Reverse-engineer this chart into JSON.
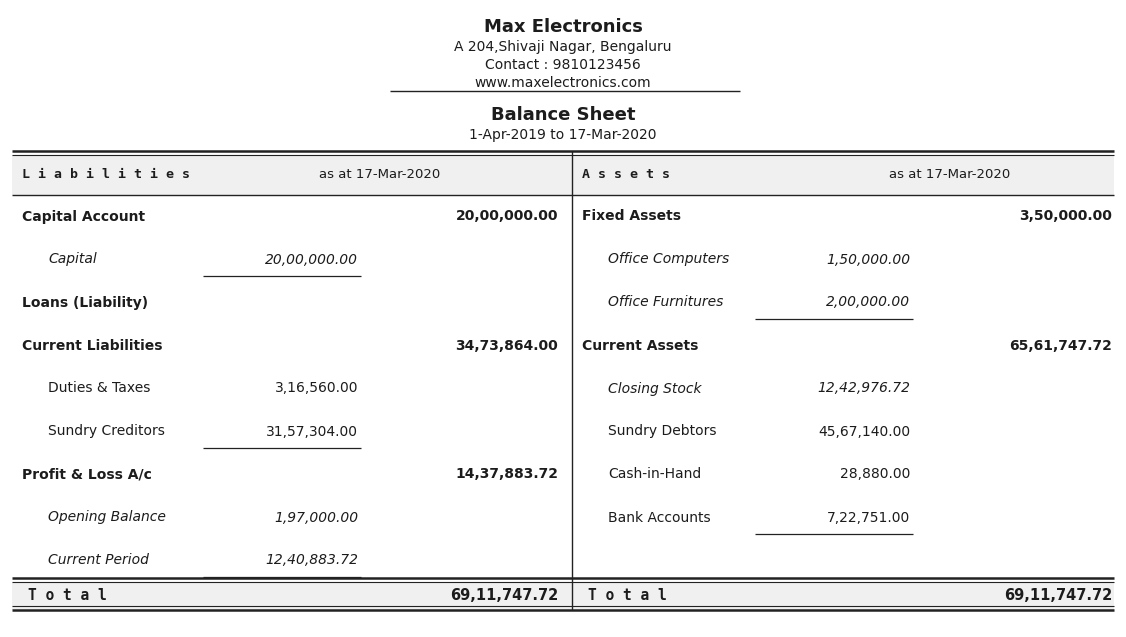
{
  "company_name": "Max Electronics",
  "address": "A 204,Shivaji Nagar, Bengaluru",
  "contact": "Contact : 9810123456",
  "website": "www.maxelectronics.com",
  "report_title": "Balance Sheet",
  "period": "1-Apr-2019 to 17-Mar-2020",
  "header_date": "as at 17-Mar-2020",
  "liabilities_header": "L i a b i l i t i e s",
  "assets_header": "A s s e t s",
  "liabilities": [
    {
      "label": "Capital Account",
      "sub_amount": "",
      "total_amount": "20,00,000.00",
      "bold": true,
      "italic": false,
      "indent": 0,
      "underline_sub": false
    },
    {
      "label": "Capital",
      "sub_amount": "20,00,000.00",
      "total_amount": "",
      "bold": false,
      "italic": true,
      "indent": 1,
      "underline_sub": true
    },
    {
      "label": "Loans (Liability)",
      "sub_amount": "",
      "total_amount": "",
      "bold": true,
      "italic": false,
      "indent": 0,
      "underline_sub": false
    },
    {
      "label": "Current Liabilities",
      "sub_amount": "",
      "total_amount": "34,73,864.00",
      "bold": true,
      "italic": false,
      "indent": 0,
      "underline_sub": false
    },
    {
      "label": "Duties & Taxes",
      "sub_amount": "3,16,560.00",
      "total_amount": "",
      "bold": false,
      "italic": false,
      "indent": 1,
      "underline_sub": false
    },
    {
      "label": "Sundry Creditors",
      "sub_amount": "31,57,304.00",
      "total_amount": "",
      "bold": false,
      "italic": false,
      "indent": 1,
      "underline_sub": true
    },
    {
      "label": "Profit & Loss A/c",
      "sub_amount": "",
      "total_amount": "14,37,883.72",
      "bold": true,
      "italic": false,
      "indent": 0,
      "underline_sub": false
    },
    {
      "label": "Opening Balance",
      "sub_amount": "1,97,000.00",
      "total_amount": "",
      "bold": false,
      "italic": true,
      "indent": 1,
      "underline_sub": false
    },
    {
      "label": "Current Period",
      "sub_amount": "12,40,883.72",
      "total_amount": "",
      "bold": false,
      "italic": true,
      "indent": 1,
      "underline_sub": true
    }
  ],
  "assets": [
    {
      "label": "Fixed Assets",
      "sub_amount": "",
      "total_amount": "3,50,000.00",
      "bold": true,
      "italic": false,
      "indent": 0,
      "underline_sub": false
    },
    {
      "label": "Office Computers",
      "sub_amount": "1,50,000.00",
      "total_amount": "",
      "bold": false,
      "italic": true,
      "indent": 1,
      "underline_sub": false
    },
    {
      "label": "Office Furnitures",
      "sub_amount": "2,00,000.00",
      "total_amount": "",
      "bold": false,
      "italic": true,
      "indent": 1,
      "underline_sub": true
    },
    {
      "label": "Current Assets",
      "sub_amount": "",
      "total_amount": "65,61,747.72",
      "bold": true,
      "italic": false,
      "indent": 0,
      "underline_sub": false
    },
    {
      "label": "Closing Stock",
      "sub_amount": "12,42,976.72",
      "total_amount": "",
      "bold": false,
      "italic": true,
      "indent": 1,
      "underline_sub": false
    },
    {
      "label": "Sundry Debtors",
      "sub_amount": "45,67,140.00",
      "total_amount": "",
      "bold": false,
      "italic": false,
      "indent": 1,
      "underline_sub": false
    },
    {
      "label": "Cash-in-Hand",
      "sub_amount": "28,880.00",
      "total_amount": "",
      "bold": false,
      "italic": false,
      "indent": 1,
      "underline_sub": false
    },
    {
      "label": "Bank Accounts",
      "sub_amount": "7,22,751.00",
      "total_amount": "",
      "bold": false,
      "italic": false,
      "indent": 1,
      "underline_sub": true
    },
    {
      "label": "",
      "sub_amount": "",
      "total_amount": "",
      "bold": false,
      "italic": false,
      "indent": 0,
      "underline_sub": false
    }
  ],
  "total_label": "T o t a l",
  "total_amount": "69,11,747.72",
  "bg_color": "#ffffff",
  "text_color": "#1c1c1c",
  "header_bg": "#f0f0f0",
  "divider_col": "#222222"
}
